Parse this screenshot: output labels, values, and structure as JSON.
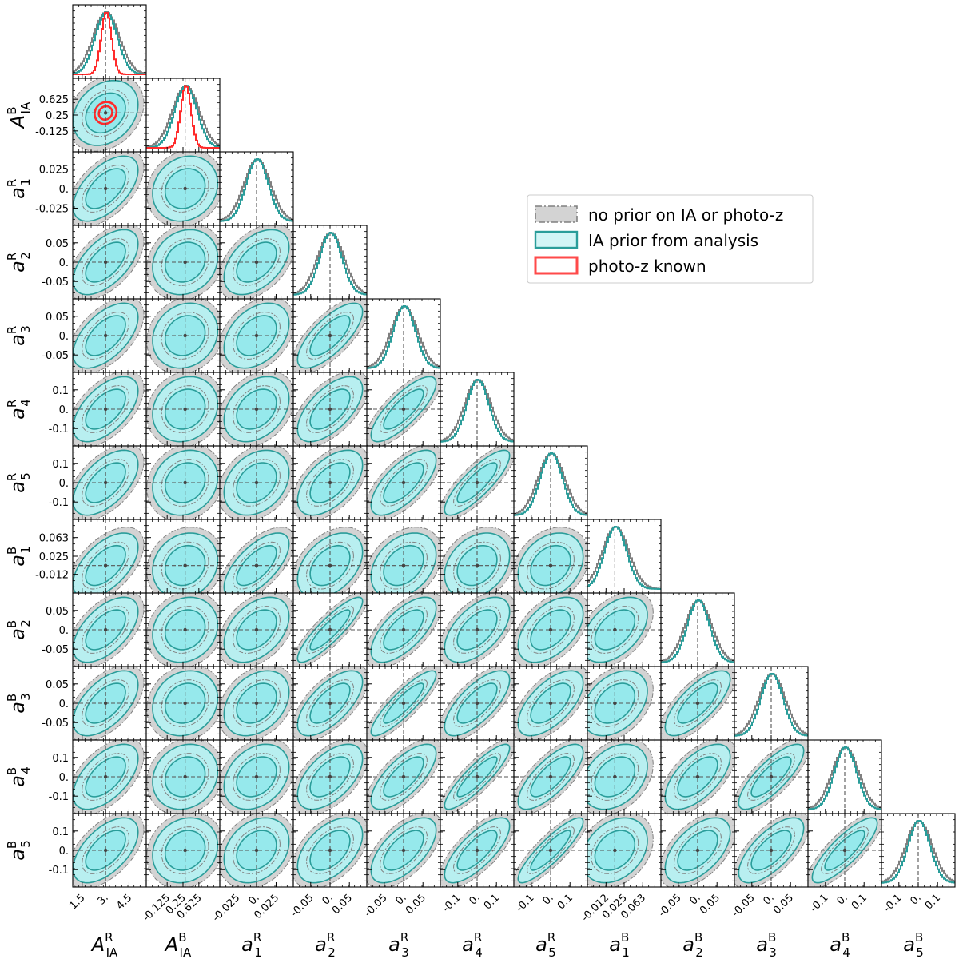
{
  "chart_data": {
    "type": "corner",
    "parameters": [
      {
        "id": "AR",
        "sym": "A",
        "sub": "IA",
        "sup": "R",
        "center": 3.0,
        "range": [
          0.9,
          5.6
        ],
        "ticks": [
          1.5,
          3.0,
          4.5
        ],
        "tick_labels": [
          "1.5",
          "3.",
          "4.5"
        ],
        "tick_rot": true
      },
      {
        "id": "AB",
        "sym": "A",
        "sub": "IA",
        "sup": "B",
        "center": 0.3,
        "range": [
          -0.62,
          1.12
        ],
        "ticks": [
          -0.125,
          0.25,
          0.625
        ],
        "tick_labels": [
          "-0.125",
          "0.25",
          "0.625"
        ],
        "tick_rot": true
      },
      {
        "id": "a1R",
        "sym": "a",
        "sub": "1",
        "sup": "R",
        "center": 0.0,
        "range": [
          -0.047,
          0.047
        ],
        "ticks": [
          -0.025,
          0.0,
          0.025
        ],
        "tick_labels": [
          "-0.025",
          "0.",
          "0.025"
        ],
        "tick_rot": true
      },
      {
        "id": "a2R",
        "sym": "a",
        "sub": "2",
        "sup": "R",
        "center": 0.0,
        "range": [
          -0.095,
          0.095
        ],
        "ticks": [
          -0.05,
          0.0,
          0.05
        ],
        "tick_labels": [
          "-0.05",
          "0.",
          "0.05"
        ],
        "tick_rot": true
      },
      {
        "id": "a3R",
        "sym": "a",
        "sub": "3",
        "sup": "R",
        "center": 0.0,
        "range": [
          -0.095,
          0.095
        ],
        "ticks": [
          -0.05,
          0.0,
          0.05
        ],
        "tick_labels": [
          "-0.05",
          "0.",
          "0.05"
        ],
        "tick_rot": true
      },
      {
        "id": "a4R",
        "sym": "a",
        "sub": "4",
        "sup": "R",
        "center": 0.0,
        "range": [
          -0.19,
          0.19
        ],
        "ticks": [
          -0.1,
          0.0,
          0.1
        ],
        "tick_labels": [
          "-0.1",
          "0.",
          "0.1"
        ],
        "tick_rot": true
      },
      {
        "id": "a5R",
        "sym": "a",
        "sub": "5",
        "sup": "R",
        "center": 0.0,
        "range": [
          -0.19,
          0.19
        ],
        "ticks": [
          -0.1,
          0.0,
          0.1
        ],
        "tick_labels": [
          "-0.1",
          "0.",
          "0.1"
        ],
        "tick_rot": true
      },
      {
        "id": "a1B",
        "sym": "a",
        "sub": "1",
        "sup": "B",
        "center": 0.006,
        "range": [
          -0.05,
          0.1
        ],
        "ticks": [
          -0.012,
          0.025,
          0.063
        ],
        "tick_labels": [
          "-0.012",
          "0.025",
          "0.063"
        ],
        "tick_rot": true
      },
      {
        "id": "a2B",
        "sym": "a",
        "sub": "2",
        "sup": "B",
        "center": 0.0,
        "range": [
          -0.095,
          0.095
        ],
        "ticks": [
          -0.05,
          0.0,
          0.05
        ],
        "tick_labels": [
          "-0.05",
          "0.",
          "0.05"
        ],
        "tick_rot": true
      },
      {
        "id": "a3B",
        "sym": "a",
        "sub": "3",
        "sup": "B",
        "center": 0.0,
        "range": [
          -0.095,
          0.095
        ],
        "ticks": [
          -0.05,
          0.0,
          0.05
        ],
        "tick_labels": [
          "-0.05",
          "0.",
          "0.05"
        ],
        "tick_rot": true
      },
      {
        "id": "a4B",
        "sym": "a",
        "sub": "4",
        "sup": "B",
        "center": 0.0,
        "range": [
          -0.19,
          0.19
        ],
        "ticks": [
          -0.1,
          0.0,
          0.1
        ],
        "tick_labels": [
          "-0.1",
          "0.",
          "0.1"
        ],
        "tick_rot": true
      },
      {
        "id": "a5B",
        "sym": "a",
        "sub": "5",
        "sup": "B",
        "center": 0.0,
        "range": [
          -0.19,
          0.19
        ],
        "ticks": [
          -0.1,
          0.0,
          0.1
        ],
        "tick_labels": [
          "-0.1",
          "0.",
          "0.1"
        ],
        "tick_rot": true
      }
    ],
    "series": [
      {
        "name": "no prior on IA or photo-z",
        "fill": "#d3d3d3",
        "edge": "#808080",
        "style": "dashdot"
      },
      {
        "name": "IA prior from analysis",
        "fill": "#96e9ec",
        "edge": "#2a9d9a",
        "style": "solid"
      },
      {
        "name": "photo-z known",
        "fill": "#ffffff",
        "edge": "#ff2a2a",
        "style": "solid"
      }
    ],
    "legend_position": "upper-right",
    "fiducial_line_style": "dashed"
  }
}
